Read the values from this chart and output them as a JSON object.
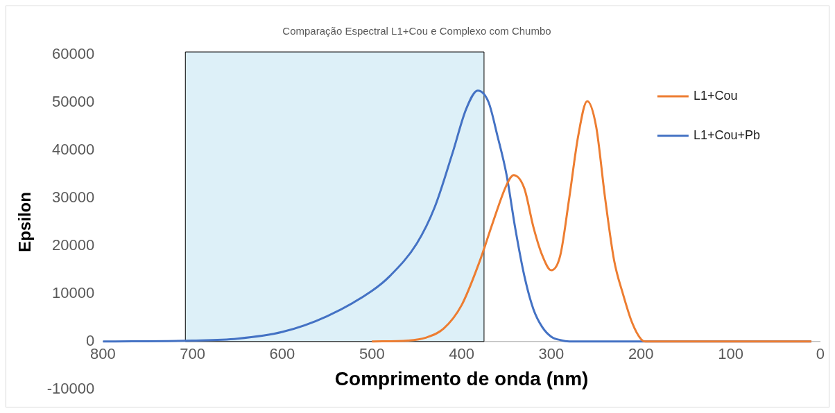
{
  "chart_data": {
    "type": "line",
    "title": "Comparação Espectral L1+Cou e Complexo com Chumbo",
    "xlabel": "Comprimento de onda (nm)",
    "ylabel": "Epsilon",
    "xlim": [
      800,
      0
    ],
    "xticks": [
      800,
      700,
      600,
      500,
      400,
      300,
      200,
      100,
      0
    ],
    "ylim": [
      -10000,
      60000
    ],
    "yticks": [
      -10000,
      0,
      10000,
      20000,
      30000,
      40000,
      50000,
      60000
    ],
    "grid": false,
    "legend": "top right",
    "marker": "none",
    "line_style": "solid",
    "bands": [
      {
        "axis": "x",
        "from": 708,
        "to": 375,
        "color": "#ddf0f8"
      }
    ],
    "series": [
      {
        "name": "L1+Cou",
        "color": "#ed7d31",
        "x": [
          500,
          460,
          440,
          420,
          400,
          380,
          365,
          350,
          342,
          330,
          320,
          310,
          300,
          290,
          280,
          270,
          260,
          250,
          240,
          230,
          220,
          210,
          200,
          195,
          10
        ],
        "values": [
          0,
          200,
          800,
          2700,
          7600,
          16700,
          25000,
          32700,
          34800,
          32000,
          24000,
          18000,
          14900,
          18000,
          30000,
          43000,
          50300,
          45000,
          30000,
          17000,
          9900,
          4000,
          500,
          0,
          0
        ]
      },
      {
        "name": "L1+Cou+Pb",
        "color": "#4472c4",
        "x": [
          800,
          700,
          650,
          600,
          550,
          500,
          480,
          450,
          430,
          410,
          395,
          382,
          370,
          360,
          350,
          340,
          330,
          320,
          310,
          300,
          290,
          280,
          10
        ],
        "values": [
          0,
          200,
          600,
          2000,
          5300,
          10600,
          13700,
          20500,
          28100,
          39500,
          48600,
          52500,
          50100,
          43000,
          35000,
          23500,
          13700,
          6800,
          3000,
          1000,
          300,
          0,
          0
        ]
      }
    ]
  }
}
